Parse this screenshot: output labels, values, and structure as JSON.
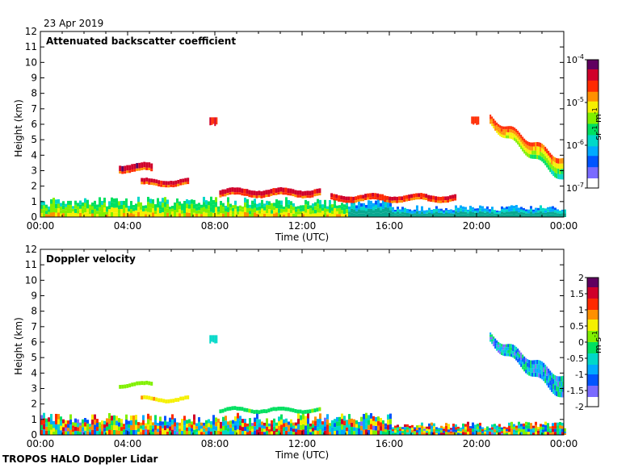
{
  "date": "23 Apr 2019",
  "footer": "TROPOS HALO Doppler Lidar",
  "colors": {
    "rainbow": [
      "#ffffff",
      "#7a6bff",
      "#0055ff",
      "#00aaff",
      "#00d8c8",
      "#00e060",
      "#80f000",
      "#f5f000",
      "#ff9000",
      "#ff2a00",
      "#d0002a",
      "#600060"
    ],
    "low_cloud_band": "#0aa890",
    "background": "#ffffff"
  },
  "chart_data": [
    {
      "type": "heatmap",
      "title": "Attenuated backscatter coefficient",
      "xlabel": "Time (UTC)",
      "ylabel": "Height (km)",
      "xlim": [
        0,
        24
      ],
      "ylim": [
        0,
        12
      ],
      "x_ticks": [
        "00:00",
        "04:00",
        "08:00",
        "12:00",
        "16:00",
        "20:00",
        "00:00"
      ],
      "y_ticks": [
        "0",
        "1",
        "2",
        "3",
        "4",
        "5",
        "6",
        "7",
        "8",
        "9",
        "10",
        "11",
        "12"
      ],
      "colorbar": {
        "label": "sr-1 m-1",
        "label_base": "sr",
        "label_exp1": "-1",
        "label_mid": " m",
        "label_exp2": "-1",
        "scale": "log",
        "range": [
          1e-07,
          0.0001
        ],
        "ticks": [
          {
            "base": "10",
            "exp": "-4"
          },
          {
            "base": "10",
            "exp": "-5"
          },
          {
            "base": "10",
            "exp": "-6"
          },
          {
            "base": "10",
            "exp": "-7"
          }
        ]
      },
      "features": [
        {
          "kind": "boundary_layer",
          "t_start": 0.0,
          "t_end": 24.0,
          "top_km": 1.2,
          "log_value": -5.8
        },
        {
          "kind": "cloud_layer",
          "t_start": 3.6,
          "t_end": 5.1,
          "height_km": 3.25,
          "thickness_km": 0.35,
          "log_value": -4.3
        },
        {
          "kind": "cloud_layer",
          "t_start": 4.6,
          "t_end": 6.8,
          "height_km": 2.3,
          "thickness_km": 0.25,
          "log_value": -4.4
        },
        {
          "kind": "cloud_layer",
          "t_start": 8.2,
          "t_end": 12.8,
          "height_km": 1.65,
          "thickness_km": 0.3,
          "log_value": -4.4
        },
        {
          "kind": "cloud_layer",
          "t_start": 13.3,
          "t_end": 19.0,
          "height_km": 1.3,
          "thickness_km": 0.25,
          "log_value": -4.5
        },
        {
          "kind": "cloud_patch",
          "t_center": 7.9,
          "height_km": 6.2,
          "log_value": -4.5
        },
        {
          "kind": "cloud_patch",
          "t_center": 19.9,
          "height_km": 6.25,
          "log_value": -4.6
        },
        {
          "kind": "descending_layer",
          "t_start": 20.6,
          "t_end": 24.0,
          "h_start_km": 6.2,
          "h_end_km": 3.0,
          "log_value": -5.0
        }
      ]
    },
    {
      "type": "heatmap",
      "title": "Doppler velocity",
      "xlabel": "Time (UTC)",
      "ylabel": "Height (km)",
      "xlim": [
        0,
        24
      ],
      "ylim": [
        0,
        12
      ],
      "x_ticks": [
        "00:00",
        "04:00",
        "08:00",
        "12:00",
        "16:00",
        "20:00",
        "00:00"
      ],
      "y_ticks": [
        "0",
        "1",
        "2",
        "3",
        "4",
        "5",
        "6",
        "7",
        "8",
        "9",
        "10",
        "11",
        "12"
      ],
      "colorbar": {
        "label": "m s-1",
        "label_base": "m",
        "label_mid": " s",
        "label_exp2": "-1",
        "scale": "linear",
        "range": [
          -2,
          2
        ],
        "ticks": [
          "2",
          "1.5",
          "1",
          "0.5",
          "0",
          "-0.5",
          "-1",
          "-1.5",
          "-2"
        ]
      },
      "features": [
        {
          "kind": "boundary_layer",
          "t_start": 0.0,
          "t_end": 24.0,
          "top_km": 1.3,
          "value": 0.0
        },
        {
          "kind": "cloud_layer",
          "t_start": 3.6,
          "t_end": 5.1,
          "height_km": 3.25,
          "value": 0.2
        },
        {
          "kind": "cloud_layer",
          "t_start": 4.6,
          "t_end": 6.8,
          "height_km": 2.3,
          "value": 0.6
        },
        {
          "kind": "cloud_layer",
          "t_start": 8.2,
          "t_end": 12.8,
          "height_km": 1.6,
          "value": -0.1
        },
        {
          "kind": "cloud_patch",
          "t_center": 7.9,
          "height_km": 6.2,
          "value": -0.6
        },
        {
          "kind": "descending_layer",
          "t_start": 20.6,
          "t_end": 24.0,
          "h_start_km": 6.2,
          "h_end_km": 3.0,
          "value": -0.8
        }
      ]
    }
  ]
}
